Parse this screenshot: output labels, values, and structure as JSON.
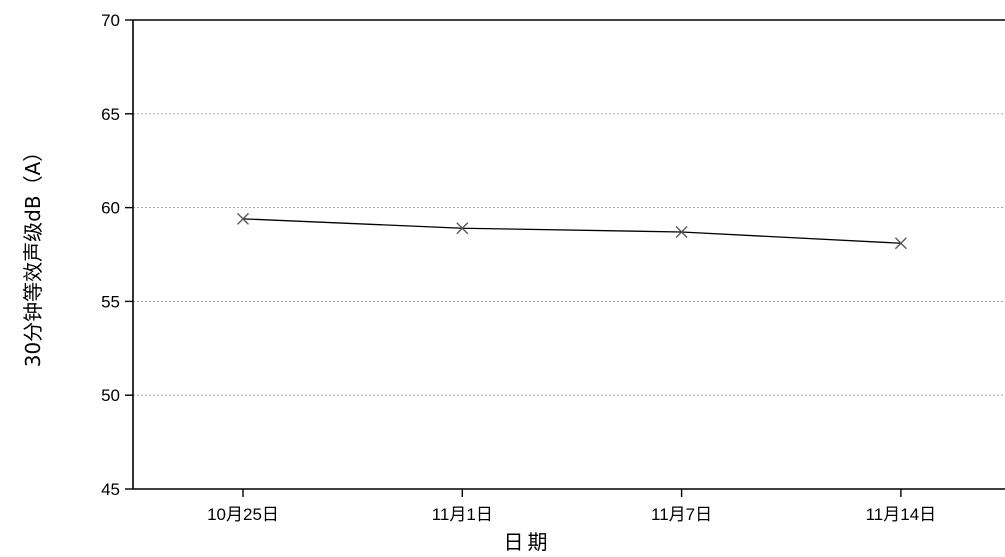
{
  "chart_data": {
    "type": "line",
    "title": "",
    "xlabel": "日期",
    "ylabel": "30分钟等效声级dB（A）",
    "categories": [
      "10月25日",
      "11月1日",
      "11月7日",
      "11月14日"
    ],
    "series": [
      {
        "values": [
          59.4,
          58.9,
          58.7,
          58.1
        ]
      }
    ],
    "ylim": [
      45,
      70
    ],
    "yticks": [
      45,
      50,
      55,
      60,
      65,
      70
    ],
    "grid": "horizontal dotted",
    "marker": "x",
    "colors": {
      "line": "#000000",
      "marker": "#555555",
      "grid": "#9a9a9a",
      "axis": "#000000"
    }
  }
}
